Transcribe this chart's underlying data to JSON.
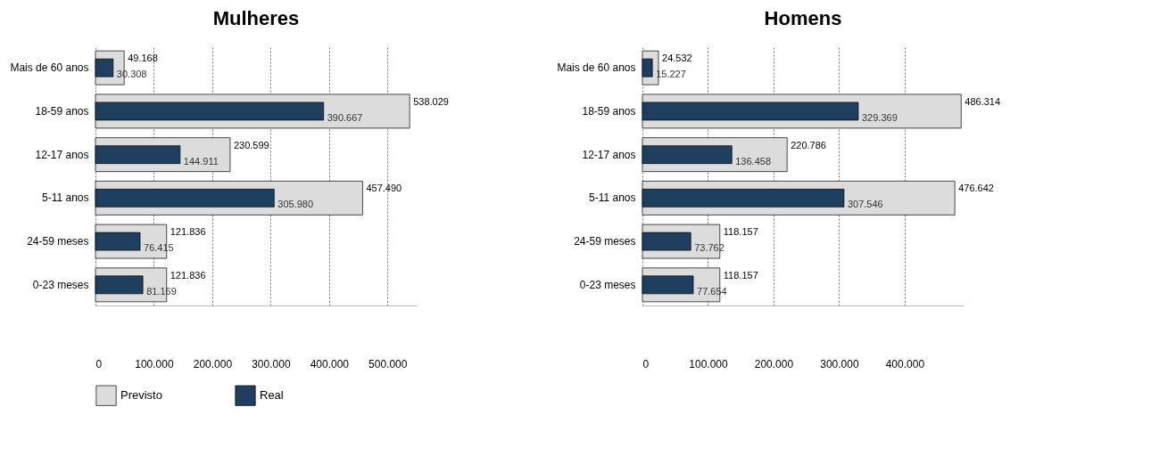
{
  "chart_data": [
    {
      "type": "bar",
      "orientation": "horizontal",
      "title": "Mulheres",
      "categories": [
        "Mais de 60 anos",
        "18-59 anos",
        "12-17 anos",
        "5-11 anos",
        "24-59 meses",
        "0-23 meses"
      ],
      "series": [
        {
          "name": "Previsto",
          "color": "#dcdcdc",
          "values": [
            49168,
            538029,
            230599,
            457490,
            121836,
            121836
          ],
          "value_labels": [
            "49.168",
            "538.029",
            "230.599",
            "457.490",
            "121.836",
            "121.836"
          ]
        },
        {
          "name": "Real",
          "color": "#1f3f5f",
          "values": [
            30308,
            390667,
            144911,
            305980,
            76415,
            81169
          ],
          "value_labels": [
            "30.308",
            "390.667",
            "144.911",
            "305.980",
            "76.415",
            "81.169"
          ]
        }
      ],
      "xlim": [
        0,
        550000
      ],
      "xticks": [
        0,
        {
          "value": 100000,
          "label": "100.000"
        },
        {
          "value": 200000,
          "label": "200.000"
        },
        {
          "value": 300000,
          "label": "300.000"
        },
        {
          "value": 400000,
          "label": "400.000"
        },
        {
          "value": 500000,
          "label": "500.000"
        }
      ],
      "grid": "x",
      "legend": "bottom"
    },
    {
      "type": "bar",
      "orientation": "horizontal",
      "title": "Homens",
      "categories": [
        "Mais de 60 anos",
        "18-59 anos",
        "12-17 anos",
        "5-11 anos",
        "24-59 meses",
        "0-23 meses"
      ],
      "series": [
        {
          "name": "Previsto",
          "color": "#dcdcdc",
          "values": [
            24532,
            486314,
            220786,
            476642,
            118157,
            118157
          ],
          "value_labels": [
            "24.532",
            "486.314",
            "220.786",
            "476.642",
            "118.157",
            "118.157"
          ]
        },
        {
          "name": "Real",
          "color": "#1f3f5f",
          "values": [
            15227,
            329369,
            136458,
            307546,
            73762,
            77654
          ],
          "value_labels": [
            "15.227",
            "329.369",
            "136.458",
            "307.546",
            "73.762",
            "77.654"
          ]
        }
      ],
      "xlim": [
        0,
        490000
      ],
      "xticks": [
        0,
        {
          "value": 100000,
          "label": "100.000"
        },
        {
          "value": 200000,
          "label": "200.000"
        },
        {
          "value": 300000,
          "label": "300.000"
        },
        {
          "value": 400000,
          "label": "400.000"
        }
      ],
      "grid": "x",
      "legend": "bottom"
    }
  ]
}
